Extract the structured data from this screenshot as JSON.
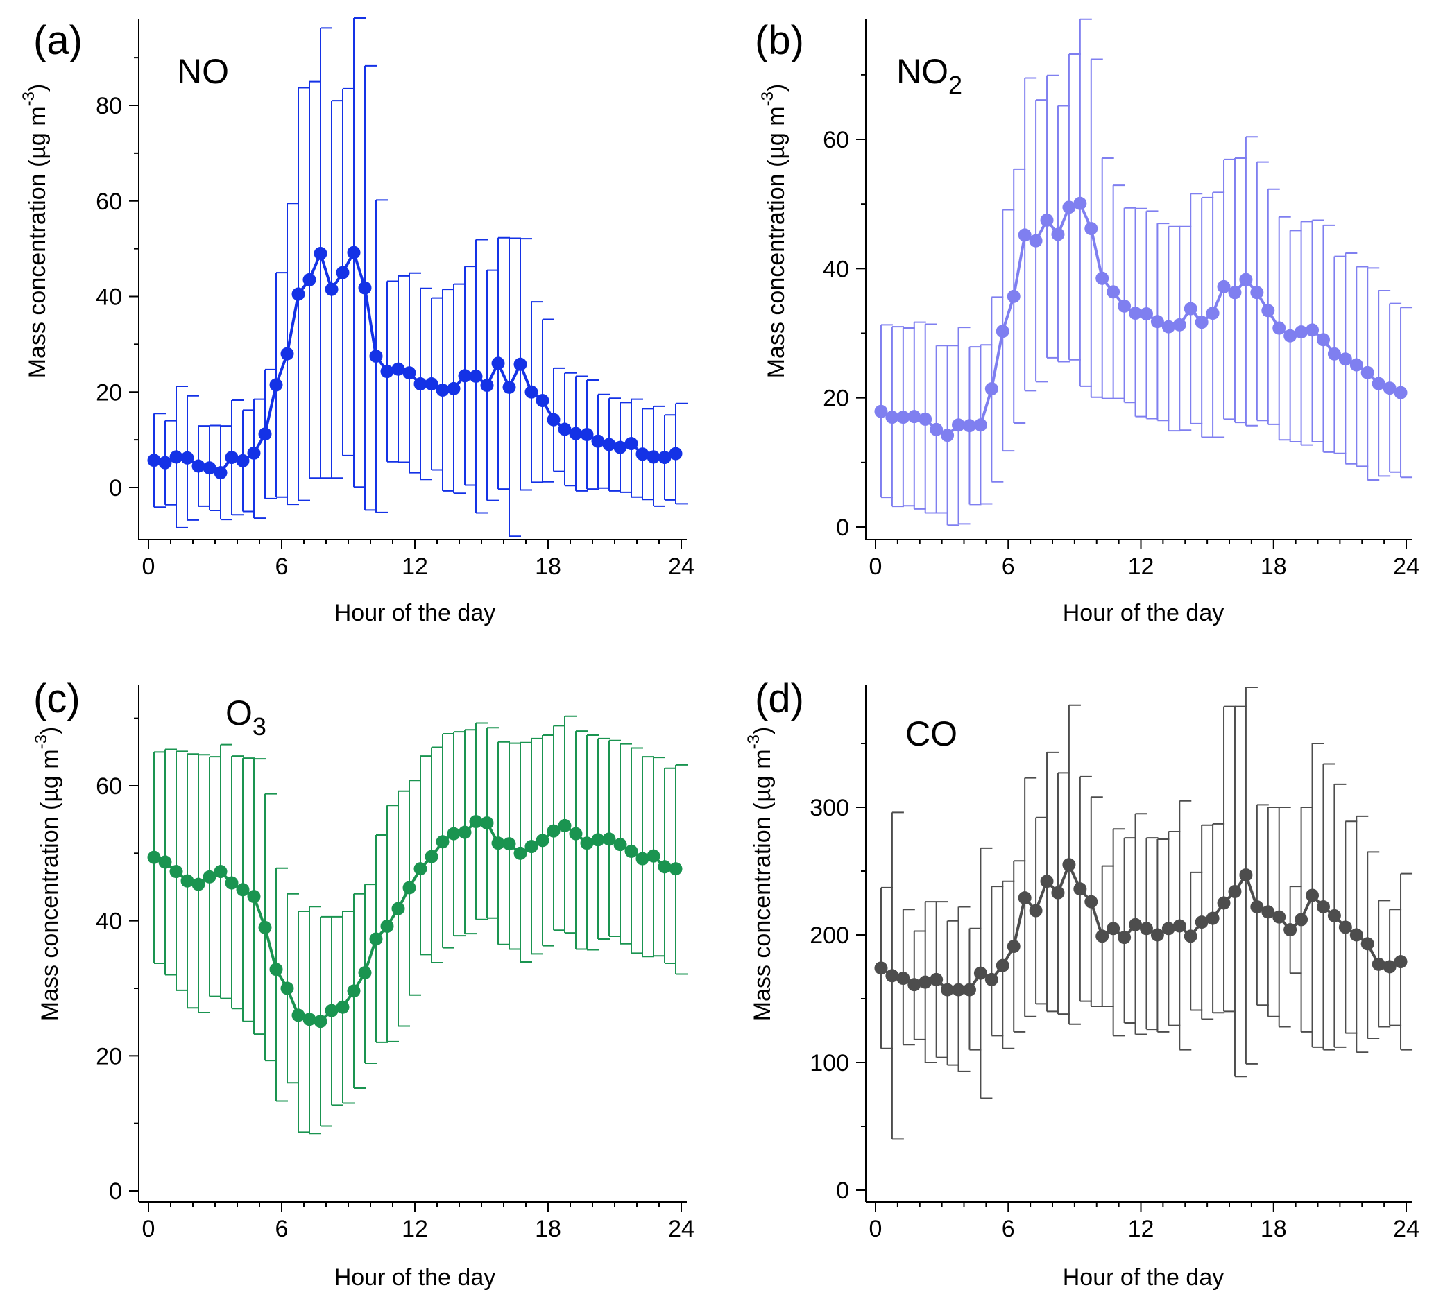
{
  "figure": {
    "panels": [
      {
        "letter": "(a)",
        "species_base": "NO",
        "species_sub": ""
      },
      {
        "letter": "(b)",
        "species_base": "NO",
        "species_sub": "2"
      },
      {
        "letter": "(c)",
        "species_base": "O",
        "species_sub": "3"
      },
      {
        "letter": "(d)",
        "species_base": "CO",
        "species_sub": ""
      }
    ],
    "ylabel_main": "Mass concentration (µg m",
    "ylabel_sup": "-3",
    "ylabel_close": ")"
  },
  "chart_data": [
    {
      "type": "line",
      "title": "NO",
      "panel_label": "(a)",
      "color": "#1432E6",
      "xlabel": "Hour of the day",
      "ylabel": "Mass concentration (µg m-3)",
      "xlim": [
        -0.5,
        24.5
      ],
      "ylim": [
        -8.5,
        98
      ],
      "xticks": [
        0,
        6,
        12,
        18,
        24
      ],
      "yticks": [
        0,
        20,
        40,
        60,
        80
      ],
      "x": [
        0.25,
        0.75,
        1.25,
        1.75,
        2.25,
        2.75,
        3.25,
        3.75,
        4.25,
        4.75,
        5.25,
        5.75,
        6.25,
        6.75,
        7.25,
        7.75,
        8.25,
        8.75,
        9.25,
        9.75,
        10.25,
        10.75,
        11.25,
        11.75,
        12.25,
        12.75,
        13.25,
        13.75,
        14.25,
        14.75,
        15.25,
        15.75,
        16.25,
        16.75,
        17.25,
        17.75,
        18.25,
        18.75,
        19.25,
        19.75,
        20.25,
        20.75,
        21.25,
        21.75,
        22.25,
        22.75,
        23.25,
        23.75
      ],
      "y": [
        5.7,
        5.2,
        6.4,
        6.2,
        4.5,
        4.1,
        3.1,
        6.3,
        5.6,
        7.2,
        11.2,
        21.5,
        28,
        40.5,
        43.5,
        49,
        41.5,
        45,
        49.2,
        41.8,
        27.5,
        24.3,
        24.8,
        24.0,
        21.7,
        21.7,
        20.4,
        20.7,
        23.4,
        23.3,
        21.4,
        26.0,
        21.0,
        25.8,
        20.0,
        18.2,
        14.2,
        12.2,
        11.3,
        11.1,
        9.7,
        9.0,
        8.4,
        9.2,
        7.0,
        6.4,
        6.3,
        7.1
      ],
      "err_upper": [
        15.5,
        14,
        21.2,
        19.2,
        12.9,
        13,
        12.9,
        18.3,
        16.2,
        18.5,
        24.7,
        45,
        59.5,
        83.7,
        85,
        96.2,
        81,
        83.5,
        98.3,
        88.3,
        60.2,
        43.2,
        44.3,
        44.9,
        41.7,
        39.7,
        41.5,
        42.6,
        46.3,
        51.9,
        45.5,
        52.3,
        52.2,
        52.1,
        38.9,
        35.2,
        25,
        24,
        23.3,
        22.5,
        19.5,
        18.7,
        17.8,
        18.5,
        16.5,
        17.0,
        15.2,
        17.6
      ],
      "err_lower": [
        -4.1,
        -3.6,
        -8.4,
        -6.8,
        -3.9,
        -4.8,
        -6.7,
        -5.7,
        -5.0,
        -6.4,
        -2.3,
        -2.0,
        -3.5,
        -2.7,
        2.0,
        2.0,
        2.0,
        6.7,
        0.1,
        -4.7,
        -5.2,
        5.4,
        5.3,
        3.1,
        1.7,
        3.7,
        -0.7,
        -1.2,
        0.5,
        -5.3,
        -2.7,
        -0.3,
        -10.2,
        -0.5,
        1.1,
        1.2,
        3.4,
        0.4,
        -0.7,
        -0.3,
        -0.1,
        -0.7,
        -1.0,
        -2.0,
        -2.5,
        -3.9,
        -2.6,
        -3.4
      ]
    },
    {
      "type": "line",
      "title": "NO2",
      "panel_label": "(b)",
      "color": "#7F7FF0",
      "xlabel": "Hour of the day",
      "ylabel": "Mass concentration (µg m-3)",
      "xlim": [
        -0.5,
        24.5
      ],
      "ylim": [
        -1.5,
        79
      ],
      "xticks": [
        0,
        6,
        12,
        18,
        24
      ],
      "yticks": [
        0,
        20,
        40,
        60
      ],
      "x": [
        0.25,
        0.75,
        1.25,
        1.75,
        2.25,
        2.75,
        3.25,
        3.75,
        4.25,
        4.75,
        5.25,
        5.75,
        6.25,
        6.75,
        7.25,
        7.75,
        8.25,
        8.75,
        9.25,
        9.75,
        10.25,
        10.75,
        11.25,
        11.75,
        12.25,
        12.75,
        13.25,
        13.75,
        14.25,
        14.75,
        15.25,
        15.75,
        16.25,
        16.75,
        17.25,
        17.75,
        18.25,
        18.75,
        19.25,
        19.75,
        20.25,
        20.75,
        21.25,
        21.75,
        22.25,
        22.75,
        23.25,
        23.75
      ],
      "y": [
        17.9,
        17.0,
        17.0,
        17.1,
        16.7,
        15.1,
        14.2,
        15.8,
        15.7,
        15.8,
        21.4,
        30.3,
        35.7,
        45.2,
        44.3,
        47.5,
        45.3,
        49.5,
        50.1,
        46.2,
        38.5,
        36.4,
        34.2,
        33.1,
        33.0,
        31.8,
        31.0,
        31.3,
        33.8,
        31.7,
        33.1,
        37.2,
        36.3,
        38.3,
        36.3,
        33.5,
        30.8,
        29.6,
        30.2,
        30.5,
        29.0,
        26.8,
        26.0,
        25.1,
        23.9,
        22.2,
        21.5,
        20.8
      ],
      "err_upper": [
        31.3,
        31,
        30.8,
        31.7,
        31.4,
        28.1,
        28.1,
        30.9,
        27.9,
        28.2,
        35.6,
        49.1,
        55.4,
        69.5,
        66.1,
        69.9,
        65.2,
        73.2,
        78.6,
        72.4,
        57.1,
        52.9,
        49.4,
        49.3,
        48.9,
        47.0,
        46.5,
        46.5,
        51.6,
        51.0,
        51.8,
        56.9,
        57.1,
        60.4,
        56.5,
        52.3,
        48.0,
        45.9,
        47.3,
        47.5,
        46.7,
        41.9,
        42.4,
        40.3,
        40.1,
        36.6,
        34.6,
        34.0
      ],
      "err_lower": [
        4.6,
        3.2,
        3.3,
        2.8,
        2.2,
        2.2,
        0.3,
        0.5,
        3.5,
        3.6,
        7.0,
        11.8,
        16.1,
        21.1,
        22.5,
        26.2,
        25.6,
        25.9,
        21.8,
        20.1,
        19.9,
        19.9,
        19.3,
        17.1,
        16.8,
        16.5,
        14.9,
        15.0,
        16.0,
        13.9,
        13.9,
        16.7,
        16.2,
        15.7,
        16.5,
        15.9,
        13.5,
        13.2,
        12.7,
        13.2,
        11.6,
        11.4,
        9.8,
        9.4,
        7.3,
        7.9,
        8.5,
        7.7
      ]
    },
    {
      "type": "line",
      "title": "O3",
      "panel_label": "(c)",
      "color": "#1A9450",
      "xlabel": "Hour of the day",
      "ylabel": "Mass concentration (µg m-3)",
      "xlim": [
        -0.5,
        24.5
      ],
      "ylim": [
        -1.5,
        75.5
      ],
      "xticks": [
        0,
        6,
        12,
        18,
        24
      ],
      "yticks": [
        0,
        20,
        40,
        60
      ],
      "x": [
        0.25,
        0.75,
        1.25,
        1.75,
        2.25,
        2.75,
        3.25,
        3.75,
        4.25,
        4.75,
        5.25,
        5.75,
        6.25,
        6.75,
        7.25,
        7.75,
        8.25,
        8.75,
        9.25,
        9.75,
        10.25,
        10.75,
        11.25,
        11.75,
        12.25,
        12.75,
        13.25,
        13.75,
        14.25,
        14.75,
        15.25,
        15.75,
        16.25,
        16.75,
        17.25,
        17.75,
        18.25,
        18.75,
        19.25,
        19.75,
        20.25,
        20.75,
        21.25,
        21.75,
        22.25,
        22.75,
        23.25,
        23.75
      ],
      "y": [
        49.4,
        48.7,
        47.3,
        45.9,
        45.4,
        46.5,
        47.3,
        45.6,
        44.6,
        43.6,
        39.0,
        32.8,
        30.0,
        26.0,
        25.4,
        25.1,
        26.7,
        27.2,
        29.6,
        32.3,
        37.3,
        39.2,
        41.8,
        44.9,
        47.7,
        49.5,
        51.7,
        52.9,
        53.1,
        54.7,
        54.5,
        51.5,
        51.4,
        50.0,
        51.0,
        51.9,
        53.3,
        54.1,
        52.9,
        51.5,
        52.0,
        52.1,
        51.3,
        50.3,
        49.2,
        49.6,
        48.0,
        47.7
      ],
      "err_upper": [
        65.0,
        65.4,
        65.1,
        64.7,
        64.6,
        64.3,
        66.1,
        64.4,
        64.1,
        64.0,
        58.8,
        47.8,
        44.0,
        41.4,
        42.1,
        40.6,
        40.6,
        41.4,
        44.0,
        45.4,
        52.7,
        57.1,
        59.2,
        60.8,
        64.4,
        65.7,
        67.7,
        68.0,
        68.3,
        69.3,
        68.6,
        66.5,
        66.3,
        66.4,
        67.0,
        67.5,
        68.9,
        70.3,
        68.1,
        67.5,
        67.0,
        66.7,
        66.2,
        65.6,
        64.3,
        64.2,
        62.6,
        63.1
      ],
      "err_lower": [
        33.7,
        32.0,
        29.7,
        27.1,
        26.4,
        28.8,
        28.5,
        27.0,
        25.1,
        23.2,
        19.3,
        13.3,
        16.0,
        8.7,
        8.5,
        9.6,
        12.7,
        13.0,
        15.2,
        18.9,
        22.0,
        22.1,
        24.4,
        29.0,
        35.0,
        33.8,
        36.0,
        37.8,
        38.1,
        40.2,
        40.4,
        36.5,
        35.8,
        33.9,
        35.1,
        36.3,
        38.6,
        38.2,
        35.8,
        35.7,
        37.3,
        37.7,
        36.6,
        35.2,
        34.7,
        34.8,
        33.7,
        32.1
      ]
    },
    {
      "type": "line",
      "title": "CO",
      "panel_label": "(d)",
      "color": "#4D4D4D",
      "xlabel": "Hour of the day",
      "ylabel": "Mass concentration (µg m-3)",
      "xlim": [
        -0.5,
        24.5
      ],
      "ylim": [
        -5,
        395
      ],
      "xticks": [
        0,
        6,
        12,
        18,
        24
      ],
      "yticks": [
        0,
        100,
        200,
        300
      ],
      "x": [
        0.25,
        0.75,
        1.25,
        1.75,
        2.25,
        2.75,
        3.25,
        3.75,
        4.25,
        4.75,
        5.25,
        5.75,
        6.25,
        6.75,
        7.25,
        7.75,
        8.25,
        8.75,
        9.25,
        9.75,
        10.25,
        10.75,
        11.25,
        11.75,
        12.25,
        12.75,
        13.25,
        13.75,
        14.25,
        14.75,
        15.25,
        15.75,
        16.25,
        16.75,
        17.25,
        17.75,
        18.25,
        18.75,
        19.25,
        19.75,
        20.25,
        20.75,
        21.25,
        21.75,
        22.25,
        22.75,
        23.25,
        23.75
      ],
      "y": [
        174,
        168,
        166,
        161,
        163,
        165,
        157,
        157,
        157,
        170,
        165,
        176,
        191,
        229,
        219,
        242,
        233,
        255,
        236,
        226,
        199,
        205,
        198,
        208,
        205,
        200,
        205,
        207,
        199,
        210,
        213,
        225,
        234,
        247,
        222,
        218,
        214,
        204,
        212,
        231,
        222,
        215,
        206,
        200,
        193,
        177,
        175,
        179
      ],
      "err_upper": [
        237,
        296,
        220,
        203,
        226,
        226,
        211,
        222,
        205,
        268,
        238,
        242,
        258,
        323,
        292,
        343,
        327,
        380,
        324,
        308,
        254,
        283,
        276,
        295,
        276,
        275,
        281,
        305,
        249,
        286,
        287,
        379,
        379,
        394,
        302,
        300,
        300,
        238,
        300,
        350,
        334,
        318,
        289,
        293,
        265,
        227,
        220,
        248
      ],
      "err_lower": [
        111,
        40,
        114,
        118,
        100,
        104,
        98,
        93,
        110,
        72,
        121,
        111,
        124,
        136,
        146,
        140,
        138,
        130,
        148,
        144,
        144,
        121,
        131,
        122,
        126,
        124,
        129,
        110,
        141,
        134,
        139,
        140,
        89,
        99,
        145,
        136,
        128,
        170,
        124,
        112,
        110,
        112,
        123,
        108,
        119,
        128,
        129,
        110
      ]
    }
  ]
}
